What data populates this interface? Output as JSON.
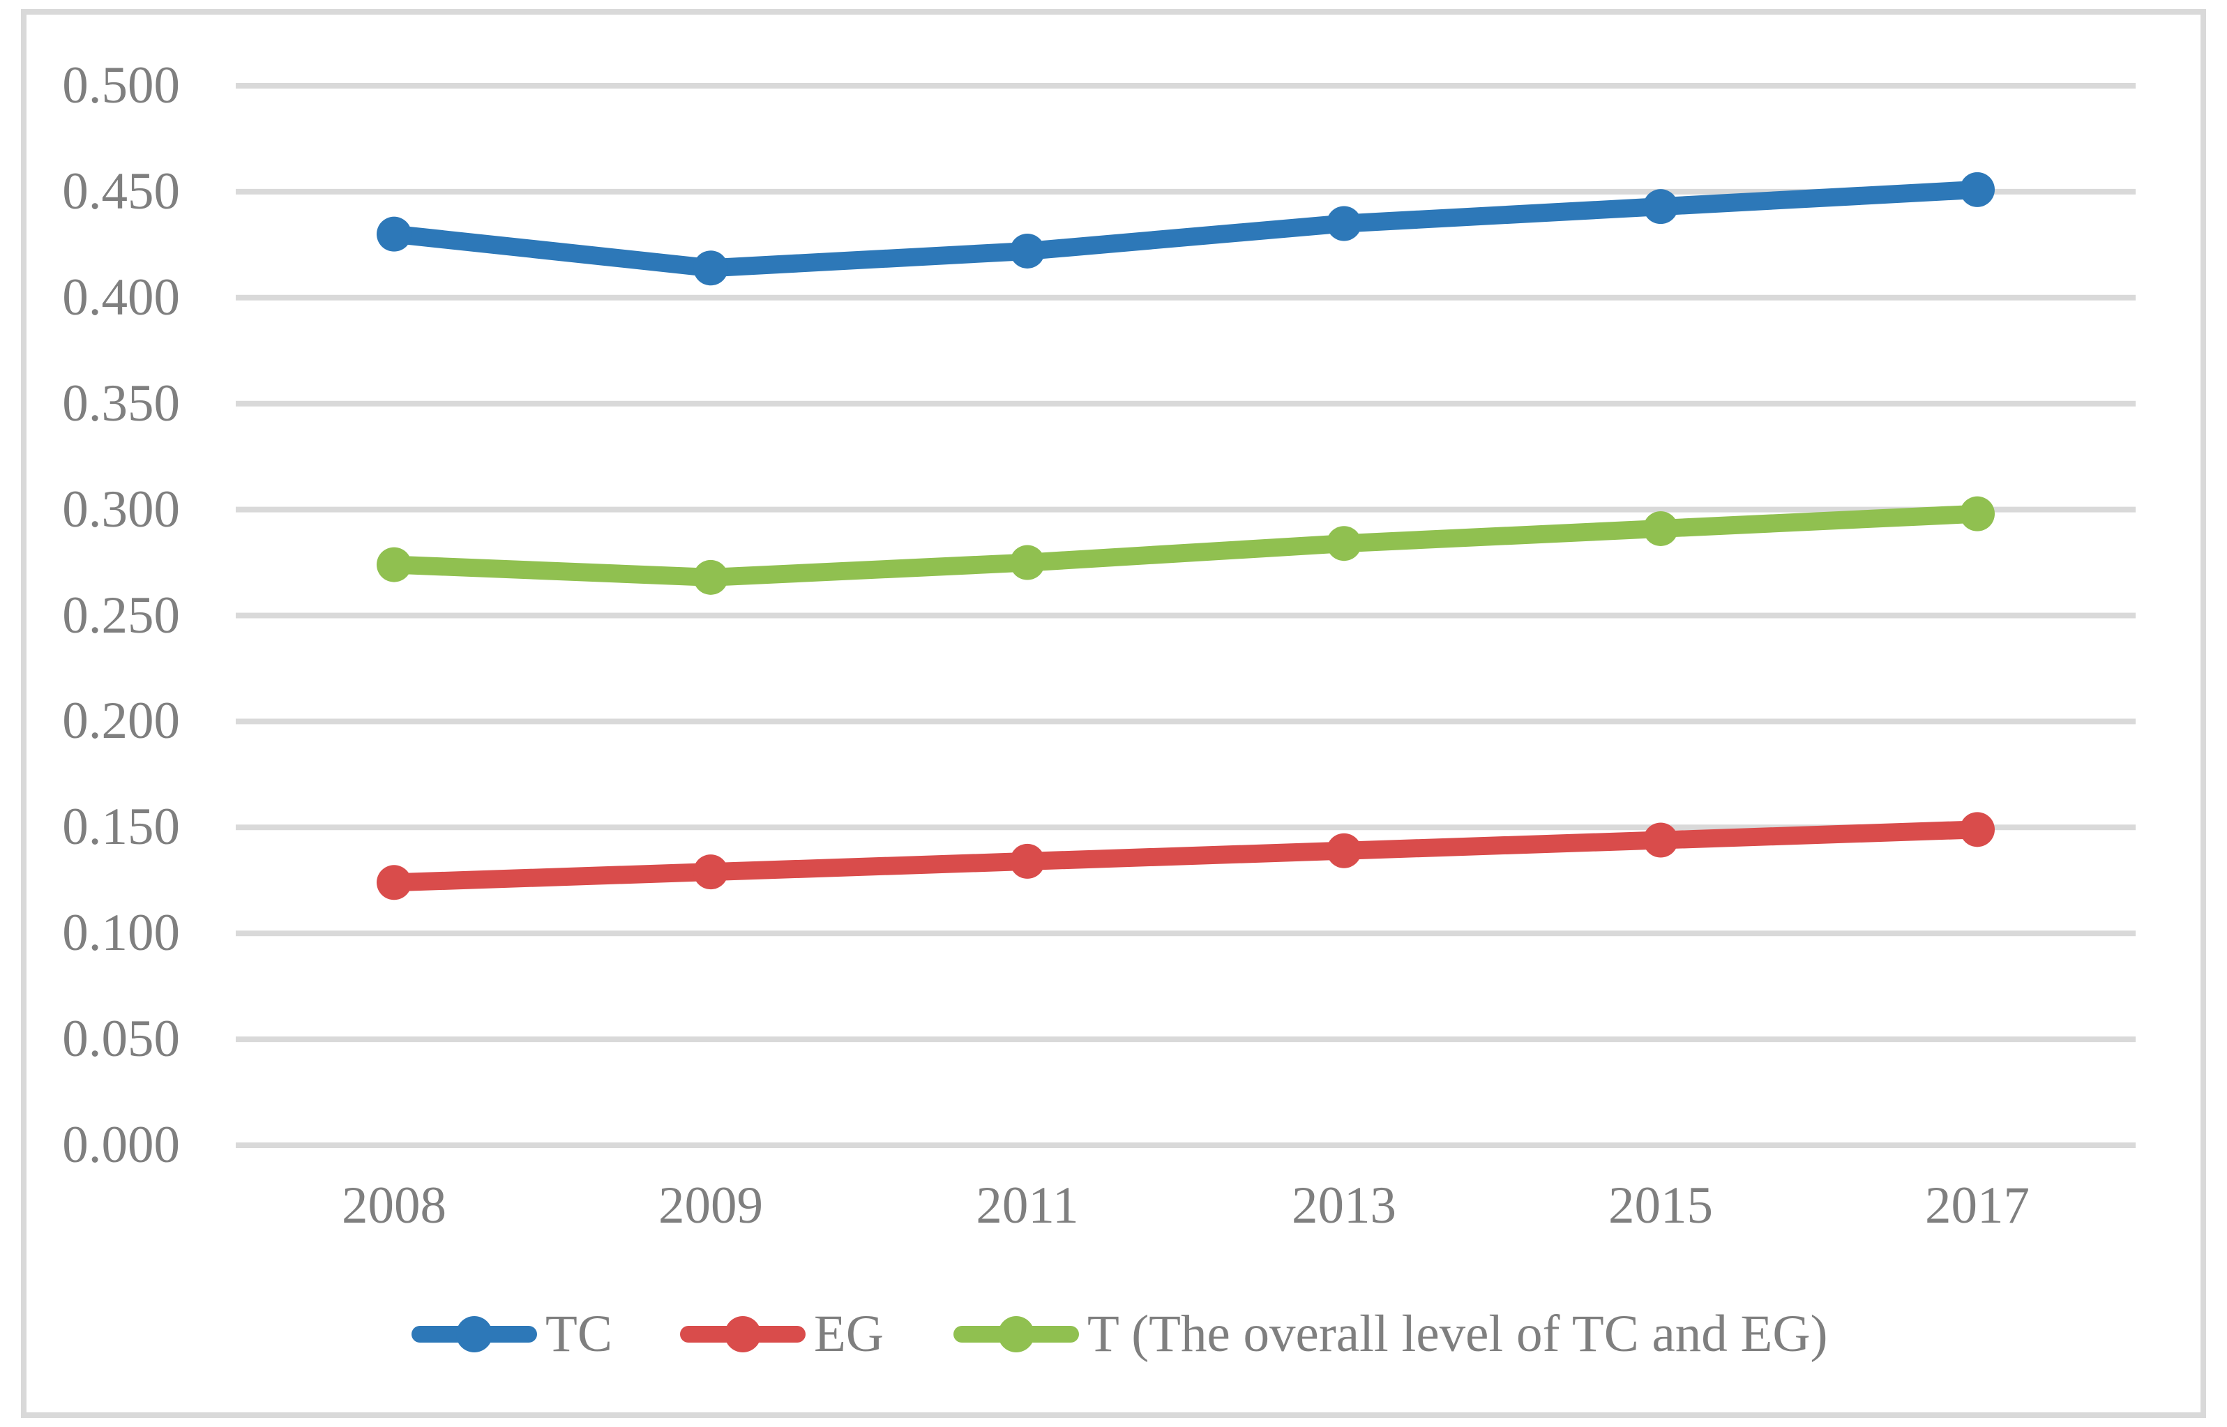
{
  "chart_data": {
    "type": "line",
    "title": "",
    "xlabel": "",
    "ylabel": "",
    "categories": [
      "2008",
      "2009",
      "2011",
      "2013",
      "2015",
      "2017"
    ],
    "series": [
      {
        "name": "TC",
        "color": "#2D78B8",
        "values": [
          0.43,
          0.414,
          0.422,
          0.435,
          0.443,
          0.451
        ]
      },
      {
        "name": "EG",
        "color": "#D94C4B",
        "values": [
          0.124,
          0.129,
          0.134,
          0.139,
          0.144,
          0.149
        ]
      },
      {
        "name": "T (The overall level of TC and EG)",
        "color": "#90C050",
        "values": [
          0.274,
          0.268,
          0.275,
          0.284,
          0.291,
          0.298
        ]
      }
    ],
    "ylim": [
      0.0,
      0.5
    ],
    "ytick_step": 0.05,
    "ytick_labels": [
      "0.000",
      "0.050",
      "0.100",
      "0.150",
      "0.200",
      "0.250",
      "0.300",
      "0.350",
      "0.400",
      "0.450",
      "0.500"
    ],
    "grid": "horizontal-only",
    "legend_position": "bottom",
    "marker": "circle"
  },
  "colors": {
    "background": "#FFFFFF",
    "gridline": "#D9D9D9",
    "frame_border": "#D9D9D9",
    "tick_text": "#7F7F7F"
  }
}
